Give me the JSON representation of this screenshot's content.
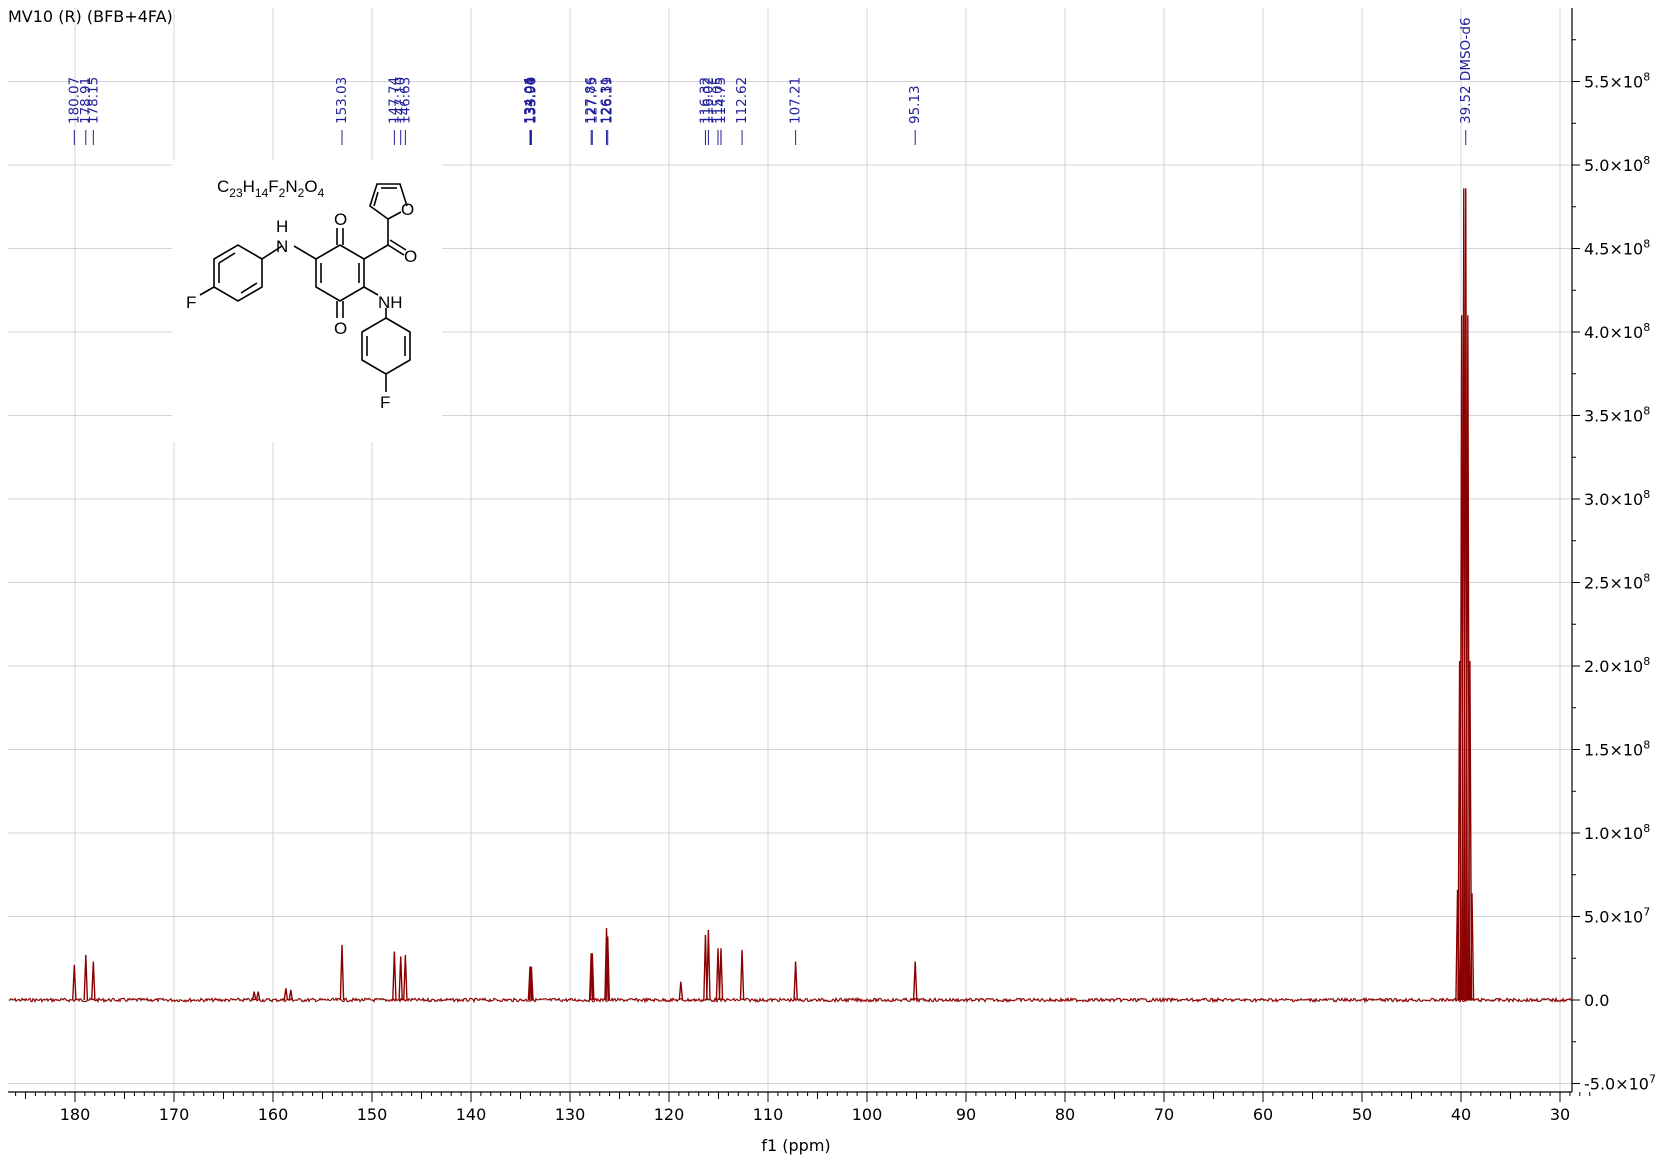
{
  "chart_data": {
    "type": "line",
    "title": "MV10 (R) (BFB+4FA)",
    "xlabel": "f1 (ppm)",
    "ylabel": "",
    "xlim": [
      186.5,
      26.5
    ],
    "ylim": [
      -55000000.0,
      590000000.0
    ],
    "x_ticks": [
      180,
      170,
      160,
      150,
      140,
      130,
      120,
      110,
      100,
      90,
      80,
      70,
      60,
      50,
      40,
      30
    ],
    "x_tick_labels": [
      "180",
      "170",
      "160",
      "150",
      "140",
      "130",
      "120",
      "110",
      "100",
      "90",
      "80",
      "70",
      "60",
      "50",
      "40",
      "30"
    ],
    "y_ticks": [
      -50000000.0,
      0,
      50000000.0,
      100000000.0,
      150000000.0,
      200000000.0,
      250000000.0,
      300000000.0,
      350000000.0,
      400000000.0,
      450000000.0,
      500000000.0,
      550000000.0
    ],
    "y_tick_labels": [
      {
        "mant": "-5.0×10",
        "exp": "7"
      },
      {
        "mant": "0.0",
        "exp": ""
      },
      {
        "mant": "5.0×10",
        "exp": "7"
      },
      {
        "mant": "1.0×10",
        "exp": "8"
      },
      {
        "mant": "1.5×10",
        "exp": "8"
      },
      {
        "mant": "2.0×10",
        "exp": "8"
      },
      {
        "mant": "2.5×10",
        "exp": "8"
      },
      {
        "mant": "3.0×10",
        "exp": "8"
      },
      {
        "mant": "3.5×10",
        "exp": "8"
      },
      {
        "mant": "4.0×10",
        "exp": "8"
      },
      {
        "mant": "4.5×10",
        "exp": "8"
      },
      {
        "mant": "5.0×10",
        "exp": "8"
      },
      {
        "mant": "5.5×10",
        "exp": "8"
      }
    ],
    "grid": true,
    "series": [
      {
        "color": "#8b0000",
        "peaks": [
          {
            "x": 180.07,
            "y": 21000000.0
          },
          {
            "x": 178.91,
            "y": 27000000.0
          },
          {
            "x": 178.15,
            "y": 23000000.0
          },
          {
            "x": 161.9,
            "y": 5000000.0
          },
          {
            "x": 161.5,
            "y": 5000000.0
          },
          {
            "x": 158.7,
            "y": 7000000.0
          },
          {
            "x": 158.2,
            "y": 6000000.0
          },
          {
            "x": 153.03,
            "y": 33000000.0
          },
          {
            "x": 147.74,
            "y": 29000000.0
          },
          {
            "x": 147.1,
            "y": 26000000.0
          },
          {
            "x": 146.63,
            "y": 27000000.0
          },
          {
            "x": 134.04,
            "y": 20000000.0
          },
          {
            "x": 134.01,
            "y": 20000000.0
          },
          {
            "x": 133.94,
            "y": 20000000.0
          },
          {
            "x": 133.9,
            "y": 20000000.0
          },
          {
            "x": 127.86,
            "y": 28000000.0
          },
          {
            "x": 127.75,
            "y": 28000000.0
          },
          {
            "x": 126.31,
            "y": 43000000.0
          },
          {
            "x": 126.19,
            "y": 38000000.0
          },
          {
            "x": 118.8,
            "y": 11000000.0
          },
          {
            "x": 116.32,
            "y": 39000000.0
          },
          {
            "x": 116.02,
            "y": 42000000.0
          },
          {
            "x": 115.05,
            "y": 31000000.0
          },
          {
            "x": 114.75,
            "y": 31000000.0
          },
          {
            "x": 112.62,
            "y": 30000000.0
          },
          {
            "x": 107.21,
            "y": 23000000.0
          },
          {
            "x": 95.13,
            "y": 23000000.0
          },
          {
            "x": 40.35,
            "y": 66000000.0
          },
          {
            "x": 40.14,
            "y": 203000000.0
          },
          {
            "x": 39.93,
            "y": 410000000.0
          },
          {
            "x": 39.72,
            "y": 486000000.0
          },
          {
            "x": 39.52,
            "y": 486000000.0
          },
          {
            "x": 39.31,
            "y": 410000000.0
          },
          {
            "x": 39.1,
            "y": 203000000.0
          },
          {
            "x": 38.89,
            "y": 64000000.0
          }
        ]
      }
    ],
    "peak_labels": [
      {
        "x": 180.07,
        "text": "180.07"
      },
      {
        "x": 178.91,
        "text": "178.91"
      },
      {
        "x": 178.15,
        "text": "178.15"
      },
      {
        "x": 153.03,
        "text": "153.03"
      },
      {
        "x": 147.74,
        "text": "147.74"
      },
      {
        "x": 147.1,
        "text": "147.10"
      },
      {
        "x": 146.63,
        "text": "146.63"
      },
      {
        "x": 134.04,
        "text": "134.04"
      },
      {
        "x": 134.01,
        "text": "134.01"
      },
      {
        "x": 133.94,
        "text": "133.94"
      },
      {
        "x": 133.9,
        "text": "133.90"
      },
      {
        "x": 127.86,
        "text": "127.86"
      },
      {
        "x": 127.75,
        "text": "127.75"
      },
      {
        "x": 126.31,
        "text": "126.31"
      },
      {
        "x": 126.19,
        "text": "126.19"
      },
      {
        "x": 116.32,
        "text": "116.32"
      },
      {
        "x": 116.02,
        "text": "116.02"
      },
      {
        "x": 115.05,
        "text": "115.05"
      },
      {
        "x": 114.75,
        "text": "114.75"
      },
      {
        "x": 112.62,
        "text": "112.62"
      },
      {
        "x": 107.21,
        "text": "107.21"
      },
      {
        "x": 95.13,
        "text": "95.13"
      },
      {
        "x": 39.52,
        "text": "39.52 DMSO-d6"
      }
    ],
    "structure": {
      "formula": {
        "C": "C",
        "n1": "23",
        "H": "H",
        "n2": "14",
        "F": "F",
        "n3": "2",
        "N": "N",
        "n4": "2",
        "O": "O",
        "n5": "4"
      },
      "atom_labels": {
        "nh_top": "H",
        "n_top": "N",
        "o_top": "O",
        "o_ring": "O",
        "o_ketone": "O",
        "nh": "NH",
        "o_bottom": "O",
        "f_left": "F",
        "f_bottom": "F"
      }
    }
  }
}
